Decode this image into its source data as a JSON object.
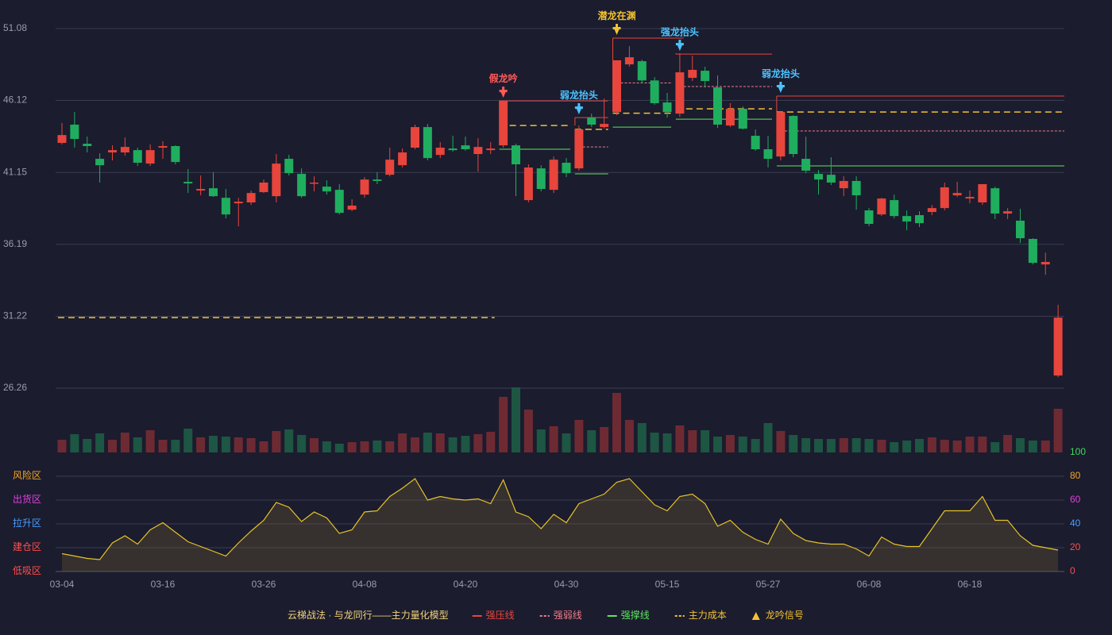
{
  "chart_data": [
    {
      "type": "candlestick",
      "ylim": [
        26.26,
        51.08
      ],
      "yticks": [
        51.08,
        46.12,
        41.15,
        36.19,
        31.22,
        26.26
      ],
      "up_color": "#e8453c",
      "down_color": "#1fae5e",
      "volume_up_color": "#6e2a33",
      "volume_down_color": "#1d5643",
      "grid": true,
      "open": [
        43.19,
        44.45,
        43.13,
        42.09,
        42.53,
        42.53,
        42.69,
        41.76,
        42.86,
        42.97,
        40.5,
        39.9,
        40.06,
        39.4,
        39.02,
        39.08,
        39.79,
        39.51,
        42.09,
        41.05,
        40.39,
        40.17,
        39.95,
        38.58,
        39.62,
        40.66,
        40.99,
        41.65,
        42.86,
        44.28,
        42.36,
        42.8,
        43.02,
        42.42,
        42.69,
        43.02,
        43.02,
        39.24,
        41.43,
        39.95,
        41.82,
        41.43,
        44.94,
        44.28,
        45.32,
        48.61,
        48.83,
        47.5,
        45.98,
        45.21,
        47.68,
        48.17,
        47.02,
        44.39,
        45.54,
        43.68,
        42.75,
        42.25,
        45.05,
        42.09,
        41.05,
        40.99,
        40.06,
        40.56,
        38.53,
        38.25,
        39.24,
        38.14,
        38.2,
        38.42,
        38.69,
        39.57,
        39.35,
        39.08,
        40.06,
        38.31,
        37.82,
        36.56,
        34.8,
        27.13
      ],
      "high": [
        44.56,
        45.32,
        43.62,
        42.47,
        43.02,
        43.57,
        42.86,
        43.08,
        43.3,
        43.02,
        41.38,
        40.94,
        41.16,
        40.01,
        39.4,
        39.9,
        40.66,
        42.42,
        42.36,
        41.43,
        40.88,
        40.61,
        40.34,
        39.3,
        40.83,
        41.16,
        42.86,
        42.8,
        44.45,
        44.5,
        43.24,
        43.68,
        43.62,
        43.51,
        43.24,
        46.09,
        43.13,
        41.71,
        41.65,
        42.25,
        42.14,
        44.39,
        45.21,
        46.25,
        48.89,
        49.87,
        48.94,
        47.73,
        46.64,
        49.38,
        49.21,
        48.45,
        47.84,
        45.93,
        45.71,
        44.12,
        43.68,
        45.32,
        45.1,
        43.62,
        41.32,
        42.2,
        40.88,
        40.88,
        38.69,
        39.4,
        39.62,
        38.53,
        38.47,
        38.91,
        40.45,
        40.5,
        39.9,
        40.34,
        40.17,
        38.69,
        38.64,
        36.61,
        35.62,
        32.01
      ],
      "low": [
        43.08,
        42.86,
        42.53,
        40.45,
        41.98,
        42.31,
        41.6,
        41.6,
        42.09,
        41.71,
        39.73,
        39.57,
        39.46,
        37.98,
        37.43,
        38.91,
        39.73,
        39.08,
        40.94,
        39.4,
        39.84,
        39.62,
        38.25,
        38.47,
        39.4,
        40.34,
        40.88,
        41.49,
        42.75,
        41.98,
        42.14,
        42.58,
        42.64,
        41.21,
        42.42,
        42.86,
        39.51,
        39.08,
        39.84,
        39.73,
        40.83,
        41.27,
        44.28,
        44.17,
        45.1,
        48.45,
        47.3,
        45.82,
        44.94,
        44.99,
        47.46,
        47.02,
        44.23,
        44.28,
        44.12,
        42.64,
        41.49,
        41.98,
        42.2,
        41.1,
        39.62,
        40.28,
        39.51,
        38.58,
        37.43,
        38.14,
        37.98,
        37.16,
        37.38,
        38.2,
        38.53,
        39.46,
        39.02,
        38.91,
        37.93,
        37.93,
        36.28,
        34.8,
        34.09,
        27.02
      ],
      "close": [
        43.73,
        43.46,
        42.97,
        41.65,
        42.69,
        42.91,
        41.82,
        42.69,
        42.97,
        41.87,
        40.39,
        40.01,
        39.51,
        38.25,
        39.13,
        39.73,
        40.45,
        41.76,
        41.1,
        39.51,
        40.45,
        39.84,
        38.36,
        38.86,
        40.66,
        40.56,
        42.03,
        42.53,
        44.28,
        42.14,
        42.86,
        42.69,
        42.75,
        42.91,
        42.8,
        46.09,
        41.71,
        41.49,
        40.01,
        42.03,
        41.1,
        44.12,
        44.45,
        44.5,
        48.89,
        49.1,
        47.5,
        45.93,
        45.32,
        48.06,
        48.23,
        47.46,
        44.45,
        45.54,
        44.17,
        42.75,
        42.09,
        45.32,
        42.42,
        41.27,
        40.66,
        40.45,
        40.56,
        39.57,
        37.6,
        39.35,
        38.14,
        37.76,
        37.65,
        38.69,
        40.12,
        39.73,
        39.46,
        40.34,
        38.31,
        38.47,
        36.61,
        34.91,
        34.97,
        31.13
      ],
      "volume": [
        16,
        23,
        17,
        24,
        16,
        25,
        19,
        28,
        16,
        16,
        30,
        19,
        21,
        20,
        19,
        18,
        14,
        27,
        29,
        22,
        18,
        14,
        11,
        13,
        14,
        15,
        14,
        24,
        19,
        25,
        24,
        19,
        21,
        23,
        26,
        70,
        82,
        54,
        29,
        33,
        24,
        41,
        28,
        32,
        75,
        41,
        37,
        25,
        24,
        34,
        28,
        28,
        20,
        22,
        20,
        17,
        37,
        27,
        22,
        18,
        17,
        17,
        18,
        18,
        17,
        16,
        13,
        15,
        17,
        19,
        16,
        15,
        20,
        20,
        13,
        22,
        18,
        15,
        15,
        55
      ],
      "styles": {
        "resistance": {
          "color": "#e8453c",
          "dash": "none"
        },
        "weak": {
          "color": "#f07c8a",
          "dash": "3 2"
        },
        "support": {
          "color": "#5ce65c",
          "dash": "none"
        },
        "cost": {
          "color": "#f2c230",
          "dash": "8 5"
        }
      },
      "levels": [
        {
          "style": "cost",
          "value": 31.13,
          "start": 0,
          "end": 34
        },
        {
          "style": "resistance",
          "value": 46.09,
          "start": 35,
          "end": 43
        },
        {
          "style": "cost",
          "value": 44.39,
          "start": 35,
          "end": 40
        },
        {
          "style": "support",
          "value": 42.75,
          "start": 35,
          "end": 40
        },
        {
          "style": "resistance",
          "value": 44.94,
          "start": 41,
          "end": 43
        },
        {
          "style": "cost",
          "value": 44.12,
          "start": 41,
          "end": 43
        },
        {
          "style": "weak",
          "value": 42.91,
          "start": 41,
          "end": 43
        },
        {
          "style": "support",
          "value": 41.05,
          "start": 41,
          "end": 43
        },
        {
          "style": "resistance",
          "value": 50.42,
          "start": 44,
          "end": 49
        },
        {
          "style": "weak",
          "value": 47.33,
          "start": 44,
          "end": 48
        },
        {
          "style": "cost",
          "value": 45.24,
          "start": 44,
          "end": 48
        },
        {
          "style": "support",
          "value": 44.28,
          "start": 44,
          "end": 48
        },
        {
          "style": "resistance",
          "value": 49.32,
          "start": 49,
          "end": 56
        },
        {
          "style": "weak",
          "value": 47.08,
          "start": 49,
          "end": 56
        },
        {
          "style": "cost",
          "value": 45.54,
          "start": 49,
          "end": 56
        },
        {
          "style": "support",
          "value": 44.83,
          "start": 49,
          "end": 56
        },
        {
          "style": "resistance",
          "value": 46.42,
          "start": 57,
          "end": 79
        },
        {
          "style": "weak",
          "value": 44.01,
          "start": 57,
          "end": 79
        },
        {
          "style": "cost",
          "value": 45.32,
          "start": 57,
          "end": 79
        },
        {
          "style": "support",
          "value": 41.6,
          "start": 57,
          "end": 79
        }
      ],
      "signals": [
        {
          "index": 35,
          "label": "假龙吟",
          "color": "#ff5a5a"
        },
        {
          "index": 41,
          "label": "弱龙抬头",
          "color": "#4cc3ff"
        },
        {
          "index": 44,
          "label": "潜龙在渊",
          "color": "#f2c230"
        },
        {
          "index": 49,
          "label": "强龙抬头",
          "color": "#4cc3ff"
        },
        {
          "index": 57,
          "label": "弱龙抬头",
          "color": "#4cc3ff"
        }
      ]
    },
    {
      "type": "line",
      "categories": [
        "03-04",
        null,
        null,
        null,
        null,
        null,
        null,
        null,
        "03-16",
        null,
        null,
        null,
        null,
        null,
        null,
        null,
        "03-26",
        null,
        null,
        null,
        null,
        null,
        null,
        null,
        "04-08",
        null,
        null,
        null,
        null,
        null,
        null,
        null,
        "04-20",
        null,
        null,
        null,
        null,
        null,
        null,
        null,
        "04-30",
        null,
        null,
        null,
        null,
        null,
        null,
        null,
        "05-15",
        null,
        null,
        null,
        null,
        null,
        null,
        null,
        "05-27",
        null,
        null,
        null,
        null,
        null,
        null,
        null,
        "06-08",
        null,
        null,
        null,
        null,
        null,
        null,
        null,
        "06-18",
        null,
        null,
        null,
        null,
        null,
        null,
        null
      ],
      "values": [
        15,
        13,
        11,
        10,
        24,
        30,
        23,
        35,
        41,
        33,
        25,
        21,
        17,
        13,
        24,
        34,
        43,
        58,
        54,
        42,
        50,
        45,
        32,
        35,
        50,
        51,
        63,
        70,
        78,
        60,
        63,
        61,
        60,
        61,
        57,
        77,
        50,
        46,
        36,
        48,
        41,
        57,
        61,
        65,
        75,
        78,
        67,
        56,
        51,
        63,
        65,
        57,
        38,
        43,
        33,
        27,
        23,
        44,
        32,
        26,
        24,
        23,
        23,
        19,
        13,
        29,
        23,
        21,
        21,
        36,
        51,
        51,
        51,
        63,
        43,
        43,
        30,
        22,
        20,
        18
      ],
      "color": "#e6c229",
      "ylim": [
        0,
        100
      ],
      "yticks": [
        0,
        20,
        40,
        60,
        80,
        100
      ],
      "ytick_colors": [
        "#ff4d4d",
        "#ff4d4d",
        "#4c9dff",
        "#e040e0",
        "#f5a623",
        "#3ddc5a"
      ],
      "zones": [
        {
          "label": "低吸区",
          "value": 0,
          "color": "#ff4d4d"
        },
        {
          "label": "建仓区",
          "value": 20,
          "color": "#ff4d4d"
        },
        {
          "label": "拉升区",
          "value": 40,
          "color": "#4c9dff"
        },
        {
          "label": "出货区",
          "value": 60,
          "color": "#e040e0"
        },
        {
          "label": "风险区",
          "value": 80,
          "color": "#f5a623"
        }
      ],
      "grid": true
    }
  ],
  "legend": {
    "title": "云梯战法 · 与龙同行——主力量化模型",
    "title_color": "#f2d27a",
    "items": [
      {
        "label": "强压线",
        "style": "resistance",
        "symbol": "line"
      },
      {
        "label": "强弱线",
        "style": "weak",
        "symbol": "line"
      },
      {
        "label": "强撑线",
        "style": "support",
        "symbol": "line"
      },
      {
        "label": "主力成本",
        "style": "cost",
        "symbol": "line"
      },
      {
        "label": "龙吟信号",
        "style": "cost",
        "symbol": "triangle"
      }
    ]
  }
}
